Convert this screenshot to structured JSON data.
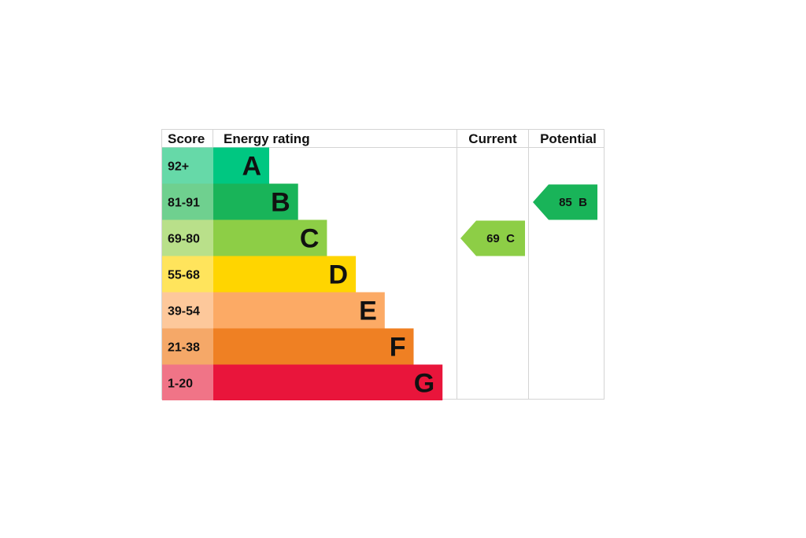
{
  "chart_data": {
    "type": "table",
    "headers": {
      "score": "Score",
      "rating": "Energy rating",
      "current": "Current",
      "potential": "Potential"
    },
    "bands": [
      {
        "letter": "A",
        "range": "92+",
        "min": 92,
        "max": 100,
        "color": "#00c781",
        "score_color": "#66d9a8"
      },
      {
        "letter": "B",
        "range": "81-91",
        "min": 81,
        "max": 91,
        "color": "#19b459",
        "score_color": "#6fd08f"
      },
      {
        "letter": "C",
        "range": "69-80",
        "min": 69,
        "max": 80,
        "color": "#8dce46",
        "score_color": "#b9e08a"
      },
      {
        "letter": "D",
        "range": "55-68",
        "min": 55,
        "max": 68,
        "color": "#ffd500",
        "score_color": "#ffe45c"
      },
      {
        "letter": "E",
        "range": "39-54",
        "min": 39,
        "max": 54,
        "color": "#fcaa65",
        "score_color": "#fdc89b"
      },
      {
        "letter": "F",
        "range": "21-38",
        "min": 21,
        "max": 38,
        "color": "#ef8023",
        "score_color": "#f5a868"
      },
      {
        "letter": "G",
        "range": "1-20",
        "min": 1,
        "max": 20,
        "color": "#e9153b",
        "score_color": "#f07487"
      }
    ],
    "current": {
      "score": 69,
      "band": "C",
      "label": "69 C",
      "color": "#8dce46"
    },
    "potential": {
      "score": 85,
      "band": "B",
      "label": "85 B",
      "color": "#19b459"
    }
  }
}
